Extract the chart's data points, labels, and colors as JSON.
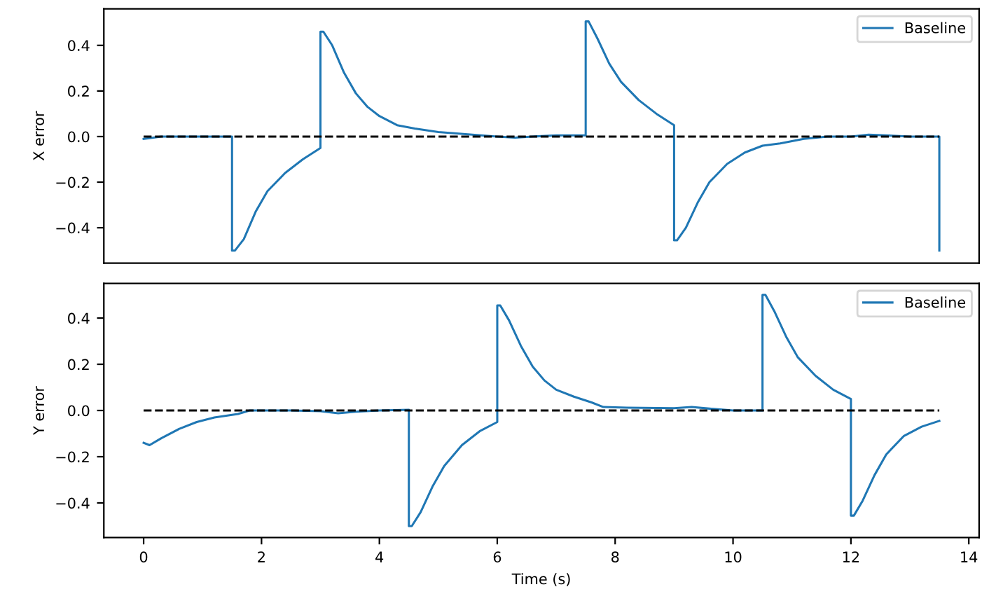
{
  "chart_data": [
    {
      "type": "line",
      "ylabel": "X error",
      "xlim": [
        -0.675,
        14.175
      ],
      "ylim": [
        -0.555,
        0.56
      ],
      "xticks": [
        0,
        2,
        4,
        6,
        8,
        10,
        12,
        14
      ],
      "yticks": [
        -0.4,
        -0.2,
        {
          "value": 0,
          "label": "0.0"
        },
        0.2,
        0.4
      ],
      "tick_labels": "y",
      "legend": "top right",
      "grid": false,
      "marker": "none",
      "series": [
        {
          "name": "Baseline",
          "color": "#1f77b4",
          "line_style": "solid",
          "x": [
            0,
            0.3,
            1.5,
            1.5,
            1.55,
            1.7,
            1.9,
            2.1,
            2.4,
            2.7,
            3.0,
            3.0,
            3.05,
            3.2,
            3.4,
            3.6,
            3.8,
            4.0,
            4.3,
            4.6,
            5.0,
            5.5,
            6.0,
            6.3,
            6.6,
            7.0,
            7.5,
            7.5,
            7.55,
            7.7,
            7.9,
            8.1,
            8.4,
            8.7,
            9.0,
            9.0,
            9.05,
            9.2,
            9.4,
            9.6,
            9.9,
            10.2,
            10.5,
            10.8,
            11.2,
            11.6,
            12.0,
            12.3,
            12.6,
            13.0,
            13.5,
            13.5
          ],
          "values": [
            -0.01,
            0.0,
            0.0,
            -0.5,
            -0.5,
            -0.45,
            -0.33,
            -0.24,
            -0.16,
            -0.1,
            -0.05,
            0.46,
            0.46,
            0.4,
            0.28,
            0.19,
            0.13,
            0.09,
            0.05,
            0.035,
            0.02,
            0.01,
            0.0,
            -0.005,
            0.0,
            0.005,
            0.005,
            0.505,
            0.505,
            0.43,
            0.32,
            0.24,
            0.16,
            0.1,
            0.05,
            -0.455,
            -0.455,
            -0.4,
            -0.29,
            -0.2,
            -0.12,
            -0.07,
            -0.04,
            -0.03,
            -0.01,
            0.0,
            0.0,
            0.008,
            0.005,
            0.0,
            0.0,
            -0.5
          ]
        },
        {
          "color": "#000000",
          "line_style": "dashed",
          "x": [
            0,
            13.5
          ],
          "values": [
            0,
            0
          ]
        }
      ]
    },
    {
      "type": "line",
      "ylabel": "Y error",
      "xlabel": "Time (s)",
      "xlim": [
        -0.675,
        14.175
      ],
      "ylim": [
        -0.55,
        0.55
      ],
      "xticks": [
        0,
        2,
        4,
        6,
        8,
        10,
        12,
        14
      ],
      "yticks": [
        -0.4,
        -0.2,
        {
          "value": 0,
          "label": "0.0"
        },
        0.2,
        0.4
      ],
      "legend": "top right",
      "grid": false,
      "marker": "none",
      "series": [
        {
          "name": "Baseline",
          "color": "#1f77b4",
          "line_style": "solid",
          "x": [
            0,
            0.1,
            0.3,
            0.6,
            0.9,
            1.2,
            1.6,
            1.8,
            2.5,
            3.0,
            3.3,
            3.6,
            4.0,
            4.5,
            4.5,
            4.55,
            4.7,
            4.9,
            5.1,
            5.4,
            5.7,
            6.0,
            6.0,
            6.05,
            6.2,
            6.4,
            6.6,
            6.8,
            7.0,
            7.3,
            7.6,
            7.8,
            8.2,
            9.0,
            9.3,
            9.6,
            10.0,
            10.5,
            10.5,
            10.55,
            10.7,
            10.9,
            11.1,
            11.4,
            11.7,
            12.0,
            12.0,
            12.05,
            12.2,
            12.4,
            12.6,
            12.9,
            13.2,
            13.5
          ],
          "values": [
            -0.14,
            -0.15,
            -0.12,
            -0.08,
            -0.05,
            -0.03,
            -0.015,
            0.0,
            0.0,
            -0.003,
            -0.012,
            -0.005,
            0.0,
            0.003,
            -0.5,
            -0.5,
            -0.44,
            -0.33,
            -0.24,
            -0.15,
            -0.09,
            -0.05,
            0.455,
            0.455,
            0.39,
            0.28,
            0.19,
            0.13,
            0.09,
            0.06,
            0.035,
            0.015,
            0.012,
            0.01,
            0.015,
            0.008,
            0.0,
            0.0,
            0.5,
            0.5,
            0.43,
            0.32,
            0.23,
            0.15,
            0.09,
            0.05,
            -0.455,
            -0.455,
            -0.39,
            -0.28,
            -0.19,
            -0.11,
            -0.07,
            -0.045
          ]
        },
        {
          "color": "#000000",
          "line_style": "dashed",
          "x": [
            0,
            13.5
          ],
          "values": [
            0,
            0
          ]
        }
      ]
    }
  ]
}
